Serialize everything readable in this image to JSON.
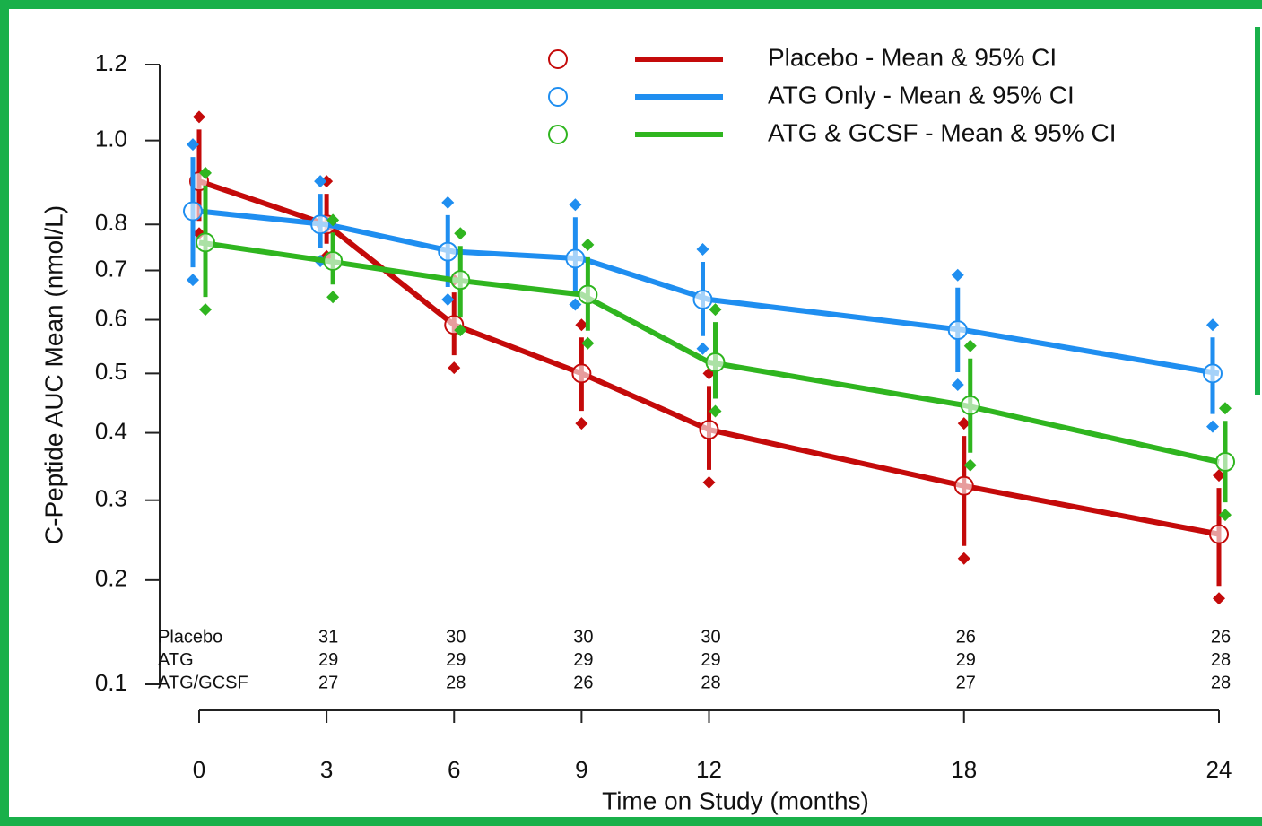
{
  "chart_data": {
    "type": "line",
    "y_label": "C-Peptide AUC Mean (nmol/L)",
    "x_label": "Time on Study (months)",
    "x": [
      0,
      3,
      6,
      9,
      12,
      18,
      24
    ],
    "xlim": [
      0,
      24
    ],
    "xticks": [
      0,
      3,
      6,
      9,
      12,
      18,
      24
    ],
    "ylim": [
      0.1,
      1.2
    ],
    "yticks": [
      0.1,
      0.2,
      0.3,
      0.4,
      0.5,
      0.6,
      0.7,
      0.8,
      {
        "value": 1.0,
        "label": "1.0"
      },
      1.2
    ],
    "y_scale": "sqrt",
    "series": [
      {
        "name": "Placebo - Mean & 95% CI",
        "color": "#c40a0a",
        "values": [
          0.9,
          0.8,
          0.59,
          0.5,
          0.405,
          0.32,
          0.255
        ],
        "lower": [
          0.78,
          0.73,
          0.51,
          0.415,
          0.325,
          0.225,
          0.18
        ],
        "upper": [
          1.06,
          0.9,
          0.68,
          0.59,
          0.5,
          0.415,
          0.335
        ]
      },
      {
        "name": "ATG Only - Mean & 95% CI",
        "color": "#1f8ef0",
        "values": [
          0.83,
          0.8,
          0.74,
          0.725,
          0.64,
          0.58,
          0.5
        ],
        "lower": [
          0.68,
          0.72,
          0.64,
          0.63,
          0.545,
          0.48,
          0.41
        ],
        "upper": [
          0.99,
          0.9,
          0.85,
          0.845,
          0.745,
          0.69,
          0.59
        ]
      },
      {
        "name": "ATG & GCSF - Mean & 95% CI",
        "color": "#2fb51f",
        "values": [
          0.76,
          0.72,
          0.68,
          0.65,
          0.52,
          0.445,
          0.355
        ],
        "lower": [
          0.62,
          0.645,
          0.58,
          0.555,
          0.435,
          0.35,
          0.28
        ],
        "upper": [
          0.92,
          0.81,
          0.78,
          0.755,
          0.62,
          0.55,
          0.44
        ]
      }
    ],
    "risk_table": [
      {
        "label": "Placebo",
        "values": [
          31,
          30,
          30,
          30,
          26,
          26
        ]
      },
      {
        "label": "ATG",
        "values": [
          29,
          29,
          29,
          29,
          29,
          28
        ]
      },
      {
        "label": "ATG/GCSF",
        "values": [
          27,
          28,
          26,
          28,
          27,
          28
        ]
      }
    ]
  }
}
